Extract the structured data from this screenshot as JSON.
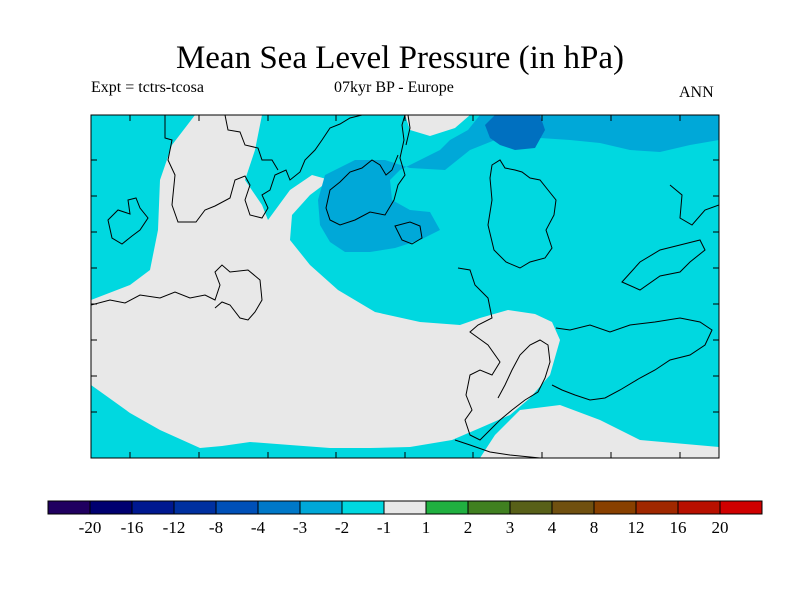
{
  "title": "Mean Sea Level Pressure (in hPa)",
  "experiment_label": "Expt = tctrs-tcosa",
  "period_label": "07kyr BP - Europe",
  "season_label": "ANN",
  "colors": {
    "background_field": "#00d8e0",
    "near_zero": "#e8e8e8",
    "low_anomaly_medium": "#00a8d8",
    "low_anomaly_strong": "#0070c0",
    "coastline": "#000000"
  },
  "colorbar": {
    "colors": [
      "#200060",
      "#000070",
      "#001890",
      "#0030a0",
      "#0050b8",
      "#0078c8",
      "#00a8d8",
      "#00d8e0",
      "#e8e8e8",
      "#20b040",
      "#408020",
      "#586018",
      "#705010",
      "#884000",
      "#a02800",
      "#b81000",
      "#d00000"
    ],
    "tick_labels": [
      "-20",
      "-16",
      "-12",
      "-8",
      "-4",
      "-3",
      "-2",
      "-1",
      "1",
      "2",
      "3",
      "4",
      "8",
      "12",
      "16",
      "20"
    ]
  }
}
